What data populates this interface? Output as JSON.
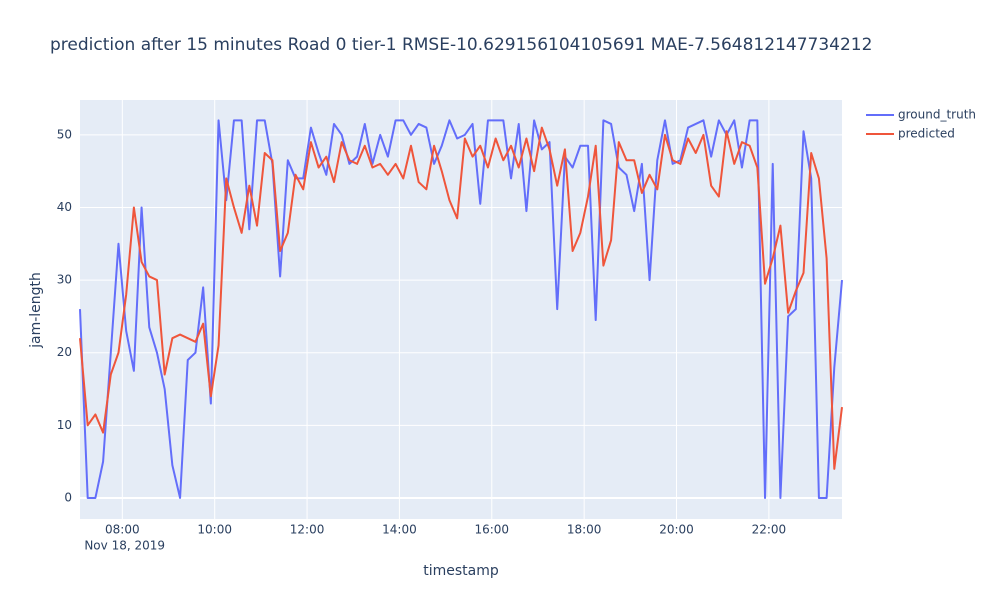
{
  "chart_data": {
    "type": "line",
    "title": "prediction after 15 minutes Road 0 tier-1 RMSE-10.629156104105691  MAE-7.564812147734212",
    "x_label": "timestamp",
    "y_label": "jam-length",
    "x_axis_date": "Nov 18, 2019",
    "x": [
      "2019-11-18 07:05",
      "2019-11-18 07:15",
      "2019-11-18 07:25",
      "2019-11-18 07:35",
      "2019-11-18 07:45",
      "2019-11-18 07:55",
      "2019-11-18 08:05",
      "2019-11-18 08:15",
      "2019-11-18 08:25",
      "2019-11-18 08:35",
      "2019-11-18 08:45",
      "2019-11-18 08:55",
      "2019-11-18 09:05",
      "2019-11-18 09:15",
      "2019-11-18 09:25",
      "2019-11-18 09:35",
      "2019-11-18 09:45",
      "2019-11-18 09:55",
      "2019-11-18 10:05",
      "2019-11-18 10:15",
      "2019-11-18 10:25",
      "2019-11-18 10:35",
      "2019-11-18 10:45",
      "2019-11-18 10:55",
      "2019-11-18 11:05",
      "2019-11-18 11:15",
      "2019-11-18 11:25",
      "2019-11-18 11:35",
      "2019-11-18 11:45",
      "2019-11-18 11:55",
      "2019-11-18 12:05",
      "2019-11-18 12:15",
      "2019-11-18 12:25",
      "2019-11-18 12:35",
      "2019-11-18 12:45",
      "2019-11-18 12:55",
      "2019-11-18 13:05",
      "2019-11-18 13:15",
      "2019-11-18 13:25",
      "2019-11-18 13:35",
      "2019-11-18 13:45",
      "2019-11-18 13:55",
      "2019-11-18 14:05",
      "2019-11-18 14:15",
      "2019-11-18 14:25",
      "2019-11-18 14:35",
      "2019-11-18 14:45",
      "2019-11-18 14:55",
      "2019-11-18 15:05",
      "2019-11-18 15:15",
      "2019-11-18 15:25",
      "2019-11-18 15:35",
      "2019-11-18 15:45",
      "2019-11-18 15:55",
      "2019-11-18 16:05",
      "2019-11-18 16:15",
      "2019-11-18 16:25",
      "2019-11-18 16:35",
      "2019-11-18 16:45",
      "2019-11-18 16:55",
      "2019-11-18 17:05",
      "2019-11-18 17:15",
      "2019-11-18 17:25",
      "2019-11-18 17:35",
      "2019-11-18 17:45",
      "2019-11-18 17:55",
      "2019-11-18 18:05",
      "2019-11-18 18:15",
      "2019-11-18 18:25",
      "2019-11-18 18:35",
      "2019-11-18 18:45",
      "2019-11-18 18:55",
      "2019-11-18 19:05",
      "2019-11-18 19:15",
      "2019-11-18 19:25",
      "2019-11-18 19:35",
      "2019-11-18 19:45",
      "2019-11-18 19:55",
      "2019-11-18 20:05",
      "2019-11-18 20:15",
      "2019-11-18 20:25",
      "2019-11-18 20:35",
      "2019-11-18 20:45",
      "2019-11-18 20:55",
      "2019-11-18 21:05",
      "2019-11-18 21:15",
      "2019-11-18 21:25",
      "2019-11-18 21:35",
      "2019-11-18 21:45",
      "2019-11-18 21:55",
      "2019-11-18 22:05",
      "2019-11-18 22:15",
      "2019-11-18 22:25",
      "2019-11-18 22:35",
      "2019-11-18 22:45",
      "2019-11-18 22:55",
      "2019-11-18 23:05",
      "2019-11-18 23:15",
      "2019-11-18 23:25",
      "2019-11-18 23:35"
    ],
    "series": [
      {
        "name": "ground_truth",
        "color": "#636efa",
        "values": [
          26,
          0,
          0,
          5,
          20,
          35,
          23,
          17.5,
          40,
          23.5,
          20,
          15,
          4.5,
          0,
          19,
          20,
          29,
          13,
          52,
          41,
          52,
          52,
          37,
          52,
          52,
          46,
          30.5,
          46.5,
          44,
          44,
          51,
          47.5,
          44.5,
          51.5,
          50,
          46,
          47,
          51.5,
          46,
          50,
          47,
          52,
          52,
          50,
          51.5,
          51,
          46,
          48.5,
          52,
          49.5,
          50,
          51.5,
          40.5,
          52,
          52,
          52,
          44,
          51.5,
          39.5,
          52,
          48,
          49,
          26,
          47,
          45.5,
          48.5,
          48.5,
          24.5,
          52,
          51.5,
          45.5,
          44.5,
          39.5,
          46,
          30,
          46.5,
          52,
          46,
          46.5,
          51,
          51.5,
          52,
          47,
          52,
          50,
          52,
          45.5,
          52,
          52,
          0,
          46,
          0,
          25,
          26,
          50.5,
          44,
          0,
          0,
          18,
          30
        ]
      },
      {
        "name": "predicted",
        "color": "#EF553B",
        "values": [
          22,
          10,
          11.5,
          9,
          17,
          20,
          28,
          40,
          32.5,
          30.5,
          30,
          17,
          22,
          22.5,
          22,
          21.5,
          24,
          14,
          21,
          44,
          40,
          36.5,
          43,
          37.5,
          47.5,
          46.5,
          34,
          36.5,
          44.5,
          42.5,
          49,
          45.5,
          47,
          43.5,
          49,
          46.5,
          46,
          48.5,
          45.5,
          46,
          44.5,
          46,
          44,
          48.5,
          43.5,
          42.5,
          48.5,
          45,
          41,
          38.5,
          49.5,
          47,
          48.5,
          45.5,
          49.5,
          46.5,
          48.5,
          45.5,
          49.5,
          45,
          51,
          48,
          43,
          48,
          34,
          36.5,
          41.5,
          48.5,
          32,
          35.5,
          49,
          46.5,
          46.5,
          42,
          44.5,
          42.5,
          50,
          46.5,
          46,
          49.5,
          47.5,
          50,
          43,
          41.5,
          50.5,
          46,
          49,
          48.5,
          45.5,
          29.5,
          33,
          37.5,
          25.5,
          28.5,
          31,
          47.5,
          44,
          33,
          4,
          12.5
        ]
      }
    ],
    "xlim": [
      "2019-11-18 07:05",
      "2019-11-18 23:35"
    ],
    "xticks": [
      {
        "value": "2019-11-18 08:00",
        "label": "08:00"
      },
      {
        "value": "2019-11-18 10:00",
        "label": "10:00"
      },
      {
        "value": "2019-11-18 12:00",
        "label": "12:00"
      },
      {
        "value": "2019-11-18 14:00",
        "label": "14:00"
      },
      {
        "value": "2019-11-18 16:00",
        "label": "16:00"
      },
      {
        "value": "2019-11-18 18:00",
        "label": "18:00"
      },
      {
        "value": "2019-11-18 20:00",
        "label": "20:00"
      },
      {
        "value": "2019-11-18 22:00",
        "label": "22:00"
      }
    ],
    "ylim": [
      -2.9,
      54.8
    ],
    "yticks": [
      0,
      10,
      20,
      30,
      40,
      50
    ],
    "grid": true
  }
}
